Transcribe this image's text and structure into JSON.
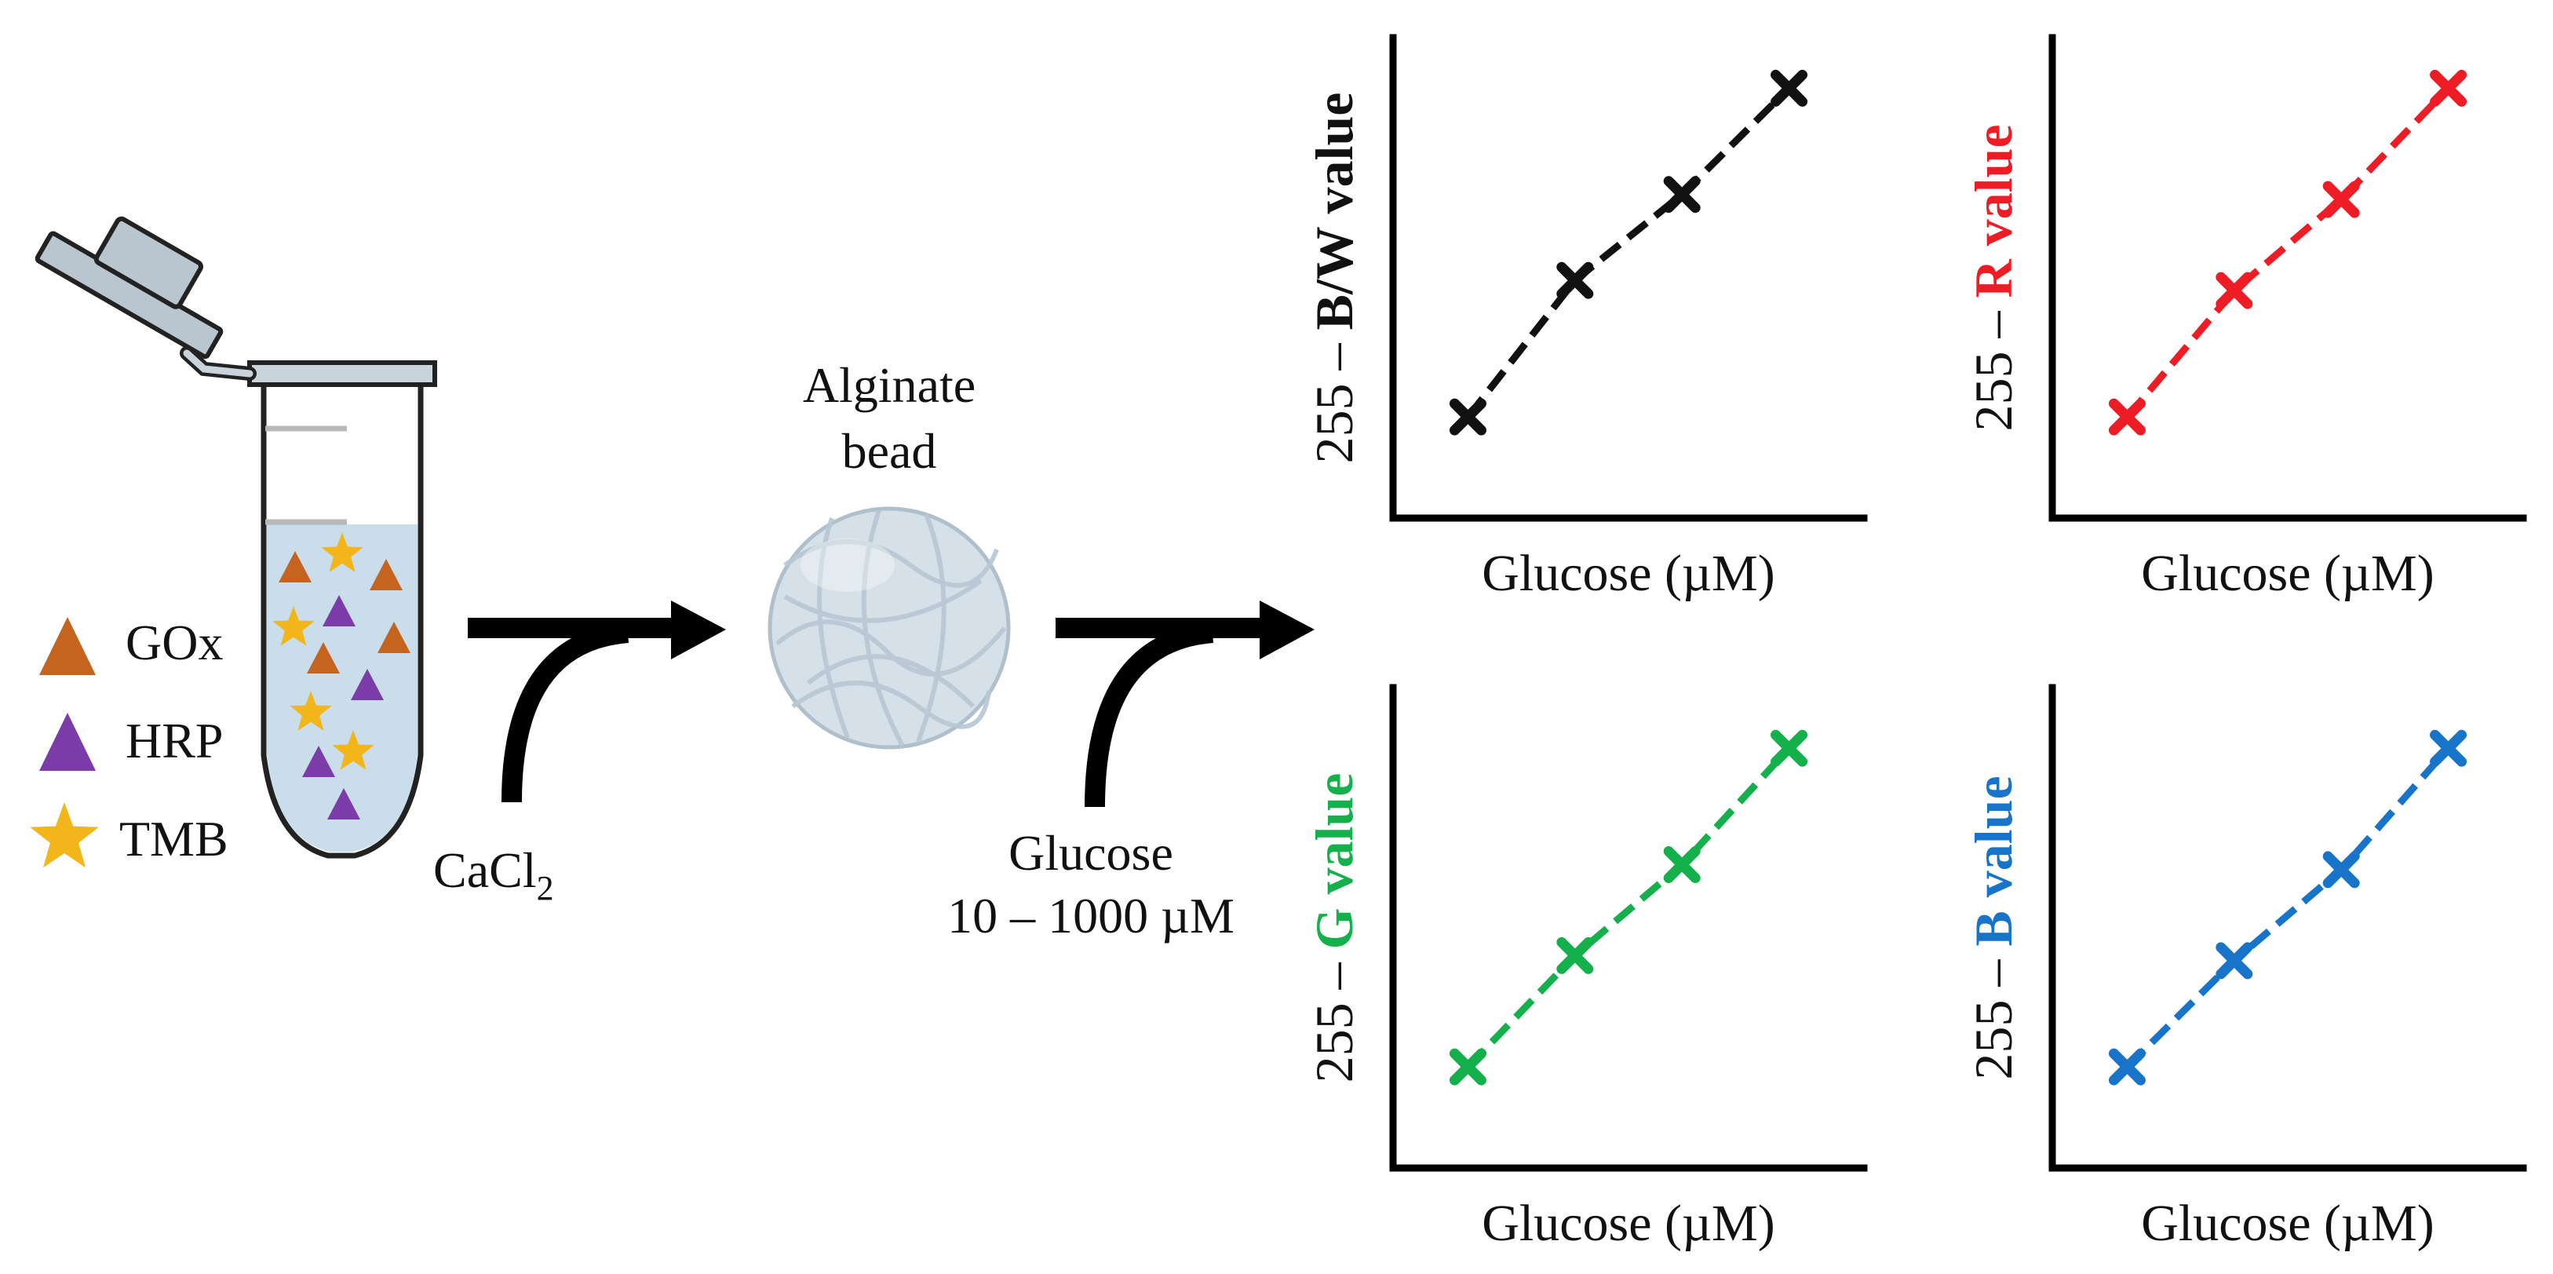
{
  "legend": {
    "items": [
      {
        "label": "GOx",
        "color": "#C4641F",
        "shape": "triangle-icon"
      },
      {
        "label": "HRP",
        "color": "#7B3BA8",
        "shape": "triangle-icon"
      },
      {
        "label": "TMB",
        "color": "#F2B51A",
        "shape": "star-icon"
      }
    ]
  },
  "steps": {
    "step1_reagent_main": "CaCl",
    "step1_reagent_sub": "2",
    "bead_label_line1": "Alginate",
    "bead_label_line2": "bead",
    "step2_line1": "Glucose",
    "step2_line2": "10 – 1000 µM"
  },
  "colors": {
    "tube_liquid": "#C9DDEB",
    "bead_fill": "#D6E0E8",
    "arrow": "#000000"
  },
  "chart_data": [
    {
      "type": "line",
      "xlabel": "Glucose (µM)",
      "ylabel_prefix": "255 – ",
      "ylabel_channel": "B/W value",
      "color": "#111111",
      "marker": "x",
      "line_style": "dashed",
      "x": [
        1,
        2,
        3,
        4
      ],
      "y": [
        1,
        2.35,
        3.2,
        4.25
      ],
      "xlim": [
        0.3,
        4.7
      ],
      "ylim": [
        0,
        4.75
      ]
    },
    {
      "type": "line",
      "xlabel": "Glucose (µM)",
      "ylabel_prefix": "255 – ",
      "ylabel_channel": "R value",
      "color": "#EE1C25",
      "marker": "x",
      "line_style": "dashed",
      "x": [
        1,
        2,
        3,
        4
      ],
      "y": [
        1,
        2.25,
        3.15,
        4.25
      ],
      "xlim": [
        0.3,
        4.7
      ],
      "ylim": [
        0,
        4.75
      ]
    },
    {
      "type": "line",
      "xlabel": "Glucose (µM)",
      "ylabel_prefix": "255 – ",
      "ylabel_channel": "G value",
      "color": "#14B04C",
      "marker": "x",
      "line_style": "dashed",
      "x": [
        1,
        2,
        3,
        4
      ],
      "y": [
        1,
        2.1,
        3.0,
        4.15
      ],
      "xlim": [
        0.3,
        4.7
      ],
      "ylim": [
        0,
        4.75
      ]
    },
    {
      "type": "line",
      "xlabel": "Glucose (µM)",
      "ylabel_prefix": "255 – ",
      "ylabel_channel": "B value",
      "color": "#1874C8",
      "marker": "x",
      "line_style": "dashed",
      "x": [
        1,
        2,
        3,
        4
      ],
      "y": [
        1,
        2.05,
        2.95,
        4.15
      ],
      "xlim": [
        0.3,
        4.7
      ],
      "ylim": [
        0,
        4.75
      ]
    }
  ]
}
